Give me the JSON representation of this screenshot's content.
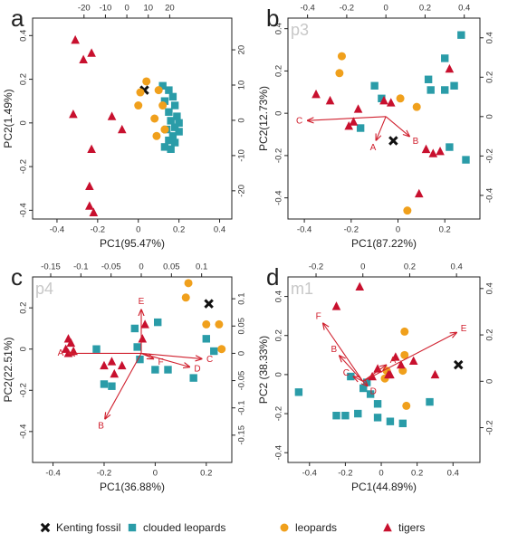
{
  "legend": [
    {
      "name": "Kenting fossil",
      "color": "#111111",
      "marker": "x"
    },
    {
      "name": "clouded leopards",
      "color": "#2a9ca8",
      "marker": "square"
    },
    {
      "name": "leopards",
      "color": "#f0a01c",
      "marker": "circle"
    },
    {
      "name": "tigers",
      "color": "#c8102e",
      "marker": "triangle"
    }
  ],
  "chart_data": [
    {
      "type": "scatter",
      "panel": "a",
      "xlabel": "PC1(95.47%)",
      "ylabel": "PC2(1.49%)",
      "xlim": [
        -0.52,
        0.46
      ],
      "xticks": [
        -0.4,
        -0.2,
        0.0,
        0.2,
        0.4
      ],
      "ylim": [
        -0.44,
        0.48
      ],
      "yticks": [
        -0.4,
        -0.2,
        0.0,
        0.2,
        0.4
      ],
      "x2lim": [
        -44,
        49
      ],
      "x2ticks": [
        -20,
        -10,
        0,
        10,
        20
      ],
      "y2lim": [
        -28,
        29
      ],
      "y2ticks": [
        -20,
        -10,
        0,
        10,
        20
      ],
      "series": [
        {
          "x": [
            0.03
          ],
          "y": [
            0.15
          ]
        },
        {
          "x": [
            0.12,
            0.15,
            0.17,
            0.13,
            0.18,
            0.15,
            0.19,
            0.16,
            0.2,
            0.18,
            0.14,
            0.2,
            0.17,
            0.15,
            0.18,
            0.13,
            0.16
          ],
          "y": [
            0.17,
            0.15,
            0.12,
            0.1,
            0.08,
            0.05,
            0.03,
            0.01,
            0.0,
            -0.02,
            -0.03,
            -0.04,
            -0.06,
            -0.08,
            -0.09,
            -0.11,
            -0.12
          ]
        },
        {
          "x": [
            0.04,
            0.01,
            0.1,
            0.0,
            0.12,
            0.08,
            0.13,
            0.09
          ],
          "y": [
            0.19,
            0.14,
            0.15,
            0.08,
            0.08,
            0.02,
            -0.03,
            -0.06
          ]
        },
        {
          "x": [
            -0.31,
            -0.27,
            -0.23,
            -0.32,
            -0.13,
            -0.08,
            -0.23,
            -0.24,
            -0.24,
            -0.22
          ],
          "y": [
            0.38,
            0.29,
            0.32,
            0.04,
            0.03,
            -0.03,
            -0.12,
            -0.29,
            -0.38,
            -0.41
          ]
        }
      ],
      "loadings": []
    },
    {
      "type": "scatter",
      "panel": "b",
      "watermark": "p3",
      "xlabel": "PC1(87.22%)",
      "ylabel": "PC2(12.73%)",
      "xlim": [
        -0.47,
        0.35
      ],
      "xticks": [
        -0.4,
        -0.2,
        0.0,
        0.2
      ],
      "ylim": [
        -0.5,
        0.45
      ],
      "yticks": [
        -0.4,
        -0.2,
        0.0,
        0.2,
        0.4
      ],
      "x2lim": [
        -0.5,
        0.48
      ],
      "x2ticks": [
        -0.4,
        -0.2,
        0.0,
        0.2,
        0.4
      ],
      "y2lim": [
        -0.52,
        0.5
      ],
      "y2ticks": [
        -0.4,
        -0.2,
        0.0,
        0.2,
        0.4
      ],
      "series": [
        {
          "x": [
            -0.02
          ],
          "y": [
            -0.13
          ]
        },
        {
          "x": [
            0.27,
            0.2,
            0.13,
            0.14,
            0.2,
            0.24,
            -0.1,
            -0.07,
            -0.16,
            0.22,
            0.29
          ],
          "y": [
            0.37,
            0.26,
            0.16,
            0.11,
            0.11,
            0.13,
            0.13,
            0.07,
            -0.07,
            -0.16,
            -0.22
          ]
        },
        {
          "x": [
            -0.24,
            -0.25,
            0.01,
            0.08,
            0.04
          ],
          "y": [
            0.27,
            0.19,
            0.07,
            0.03,
            -0.46
          ]
        },
        {
          "x": [
            -0.35,
            -0.29,
            -0.21,
            -0.19,
            -0.17,
            -0.06,
            0.12,
            0.15,
            0.18,
            0.09,
            0.22,
            -0.03
          ],
          "y": [
            0.09,
            0.06,
            -0.06,
            -0.04,
            0.02,
            0.06,
            -0.17,
            -0.19,
            -0.18,
            -0.38,
            0.21,
            0.05
          ]
        }
      ],
      "loadings": [
        {
          "label": "C",
          "x": -0.4,
          "y": -0.02
        },
        {
          "label": "A",
          "x": -0.05,
          "y": -0.12
        },
        {
          "label": "B",
          "x": 0.12,
          "y": -0.1
        }
      ]
    },
    {
      "type": "scatter",
      "panel": "c",
      "watermark": "p4",
      "xlabel": "PC1(36.88%)",
      "ylabel": "PC2(22.51%)",
      "xlim": [
        -0.48,
        0.3
      ],
      "xticks": [
        -0.4,
        -0.2,
        0.0,
        0.2
      ],
      "ylim": [
        -0.55,
        0.35
      ],
      "yticks": [
        -0.4,
        -0.2,
        0.0,
        0.2
      ],
      "x2lim": [
        -0.18,
        0.15
      ],
      "x2ticks": [
        -0.15,
        -0.1,
        -0.05,
        0.0,
        0.05,
        0.1
      ],
      "y2lim": [
        -0.2,
        0.14
      ],
      "y2ticks": [
        -0.15,
        -0.1,
        -0.05,
        0.0,
        0.05,
        0.1
      ],
      "series": [
        {
          "x": [
            0.21
          ],
          "y": [
            0.22
          ]
        },
        {
          "x": [
            -0.2,
            -0.17,
            -0.08,
            -0.07,
            -0.06,
            0.0,
            0.05,
            0.15,
            0.23,
            0.2,
            0.01,
            -0.23
          ],
          "y": [
            -0.17,
            -0.18,
            0.1,
            0.01,
            -0.05,
            -0.1,
            -0.1,
            -0.14,
            -0.01,
            0.05,
            0.13,
            0.0
          ]
        },
        {
          "x": [
            0.13,
            0.12,
            0.2,
            0.25,
            0.26
          ],
          "y": [
            0.32,
            0.25,
            0.12,
            0.12,
            0.0
          ]
        },
        {
          "x": [
            -0.34,
            -0.33,
            -0.35,
            -0.32,
            -0.34,
            -0.2,
            -0.17,
            -0.16,
            -0.13,
            -0.04,
            -0.05
          ],
          "y": [
            0.05,
            0.03,
            0.0,
            -0.01,
            -0.02,
            -0.08,
            -0.06,
            -0.12,
            -0.08,
            0.12,
            0.05
          ]
        }
      ],
      "loadings": [
        {
          "label": "E",
          "x": 0.0,
          "y": 0.08
        },
        {
          "label": "A",
          "x": -0.12,
          "y": 0.0
        },
        {
          "label": "B",
          "x": -0.06,
          "y": -0.12
        },
        {
          "label": "F",
          "x": 0.02,
          "y": -0.01
        },
        {
          "label": "C",
          "x": 0.1,
          "y": -0.01
        },
        {
          "label": "D",
          "x": 0.08,
          "y": -0.025
        }
      ]
    },
    {
      "type": "scatter",
      "panel": "d",
      "watermark": "m1",
      "xlabel": "PC1(44.89%)",
      "ylabel": "PC2 (38.33%)",
      "xlim": [
        -0.52,
        0.55
      ],
      "xticks": [
        -0.4,
        -0.2,
        0.0,
        0.2,
        0.4
      ],
      "ylim": [
        -0.45,
        0.5
      ],
      "yticks": [
        -0.4,
        -0.2,
        0.0,
        0.2,
        0.4
      ],
      "x2lim": [
        -0.32,
        0.5
      ],
      "x2ticks": [
        -0.2,
        0.0,
        0.2,
        0.4
      ],
      "y2lim": [
        -0.35,
        0.45
      ],
      "y2ticks": [
        -0.2,
        0.0,
        0.2,
        0.4
      ],
      "series": [
        {
          "x": [
            0.43
          ],
          "y": [
            0.05
          ]
        },
        {
          "x": [
            -0.46,
            -0.17,
            -0.08,
            -0.1,
            -0.06,
            -0.13,
            -0.2,
            -0.25,
            -0.02,
            0.05,
            0.12,
            0.27,
            -0.02
          ],
          "y": [
            -0.09,
            -0.01,
            -0.04,
            -0.07,
            -0.1,
            -0.2,
            -0.21,
            -0.21,
            -0.22,
            -0.24,
            -0.25,
            -0.14,
            -0.15
          ]
        },
        {
          "x": [
            0.13,
            0.13,
            0.03,
            0.02,
            0.14,
            0.12
          ],
          "y": [
            0.22,
            0.1,
            0.02,
            -0.02,
            -0.16,
            0.02
          ]
        },
        {
          "x": [
            -0.12,
            -0.25,
            0.05,
            0.11,
            0.08,
            0.18,
            0.3,
            -0.05,
            -0.02,
            0.04
          ],
          "y": [
            0.45,
            0.35,
            0.0,
            0.05,
            0.09,
            0.07,
            0.0,
            -0.01,
            0.03,
            0.0
          ]
        }
      ],
      "loadings": [
        {
          "label": "F",
          "x": -0.17,
          "y": 0.25
        },
        {
          "label": "E",
          "x": 0.4,
          "y": 0.21
        },
        {
          "label": "B",
          "x": -0.1,
          "y": 0.11
        },
        {
          "label": "A",
          "x": 0.1,
          "y": 0.07
        },
        {
          "label": "C",
          "x": -0.04,
          "y": 0.02
        },
        {
          "label": "D",
          "x": 0.02,
          "y": -0.02
        }
      ]
    }
  ]
}
